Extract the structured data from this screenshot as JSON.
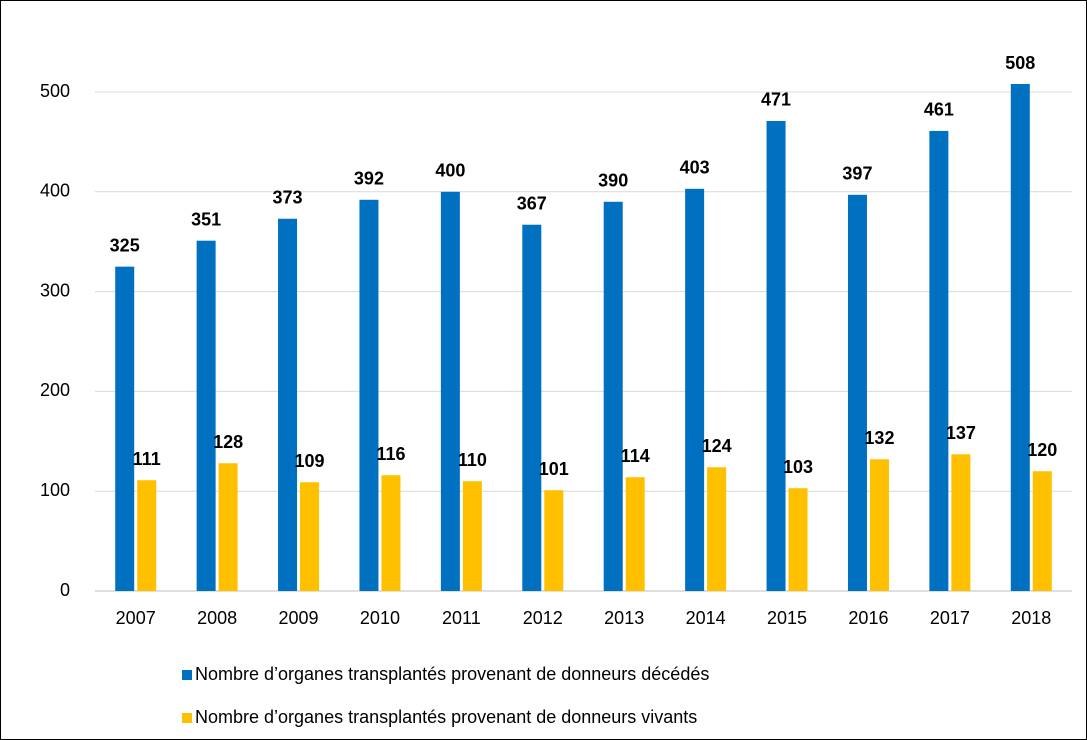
{
  "chart_data": {
    "type": "bar",
    "categories": [
      "2007",
      "2008",
      "2009",
      "2010",
      "2011",
      "2012",
      "2013",
      "2014",
      "2015",
      "2016",
      "2017",
      "2018"
    ],
    "series": [
      {
        "name": "Nombre d’organes transplantés provenant de donneurs décédés",
        "color": "#0070c0",
        "values": [
          325,
          351,
          373,
          392,
          400,
          367,
          390,
          403,
          471,
          397,
          461,
          508
        ]
      },
      {
        "name": "Nombre d’organes transplantés provenant de donneurs vivants",
        "color": "#ffc000",
        "values": [
          111,
          128,
          109,
          116,
          110,
          101,
          114,
          124,
          103,
          132,
          137,
          120
        ]
      }
    ],
    "ylim": [
      0,
      550
    ],
    "yticks": [
      0,
      100,
      200,
      300,
      400,
      500
    ],
    "grid": true,
    "legend": "bottom"
  }
}
